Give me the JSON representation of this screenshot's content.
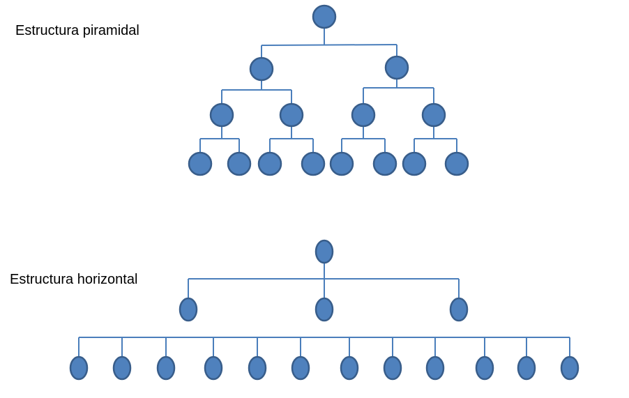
{
  "pyramid": {
    "label": "Estructura piramidal"
  },
  "horizontal": {
    "label": "Estructura horizontal"
  },
  "colors": {
    "node_fill": "#4f81bd",
    "node_stroke": "#385d8a",
    "connector": "#4a7ebb"
  }
}
